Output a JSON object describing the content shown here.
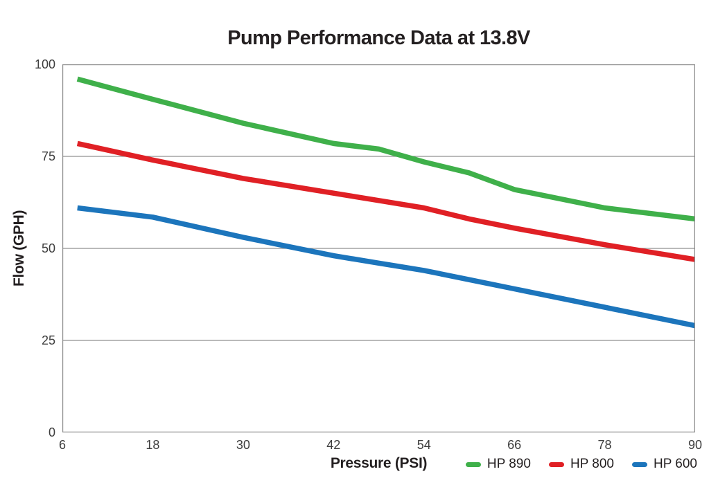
{
  "chart_data": {
    "type": "line",
    "title": "Pump Performance Data at 13.8V",
    "xlabel": "Pressure (PSI)",
    "ylabel": "Flow (GPH)",
    "xlim": [
      6,
      90
    ],
    "ylim": [
      0,
      100
    ],
    "x_ticks": [
      6,
      18,
      30,
      42,
      54,
      66,
      78,
      90
    ],
    "y_ticks": [
      0,
      25,
      50,
      75,
      100
    ],
    "grid": "horizontal-gridlines-at-25-50-75",
    "legend_position": "bottom-right",
    "x": [
      8,
      18,
      30,
      42,
      48,
      54,
      60,
      66,
      78,
      90
    ],
    "series": [
      {
        "name": "HP 890",
        "color": "#3fb04a",
        "values": [
          96,
          90.5,
          84,
          78.5,
          77,
          73.5,
          70.5,
          66,
          61,
          58
        ]
      },
      {
        "name": "HP 800",
        "color": "#e02025",
        "values": [
          78.5,
          74,
          69,
          65,
          63,
          61,
          58,
          55.5,
          51,
          47
        ]
      },
      {
        "name": "HP 600",
        "color": "#1c75bc",
        "values": [
          61,
          58.5,
          53,
          48,
          46,
          44,
          41.5,
          39,
          34,
          29
        ]
      }
    ]
  },
  "colors": {
    "background": "#ffffff",
    "gridline": "#909090",
    "plot_border": "#8c8c8c",
    "title_text": "#231f20",
    "axis_label_text": "#231f20",
    "tick_text": "#3d3d3d",
    "legend_text": "#231f20"
  }
}
